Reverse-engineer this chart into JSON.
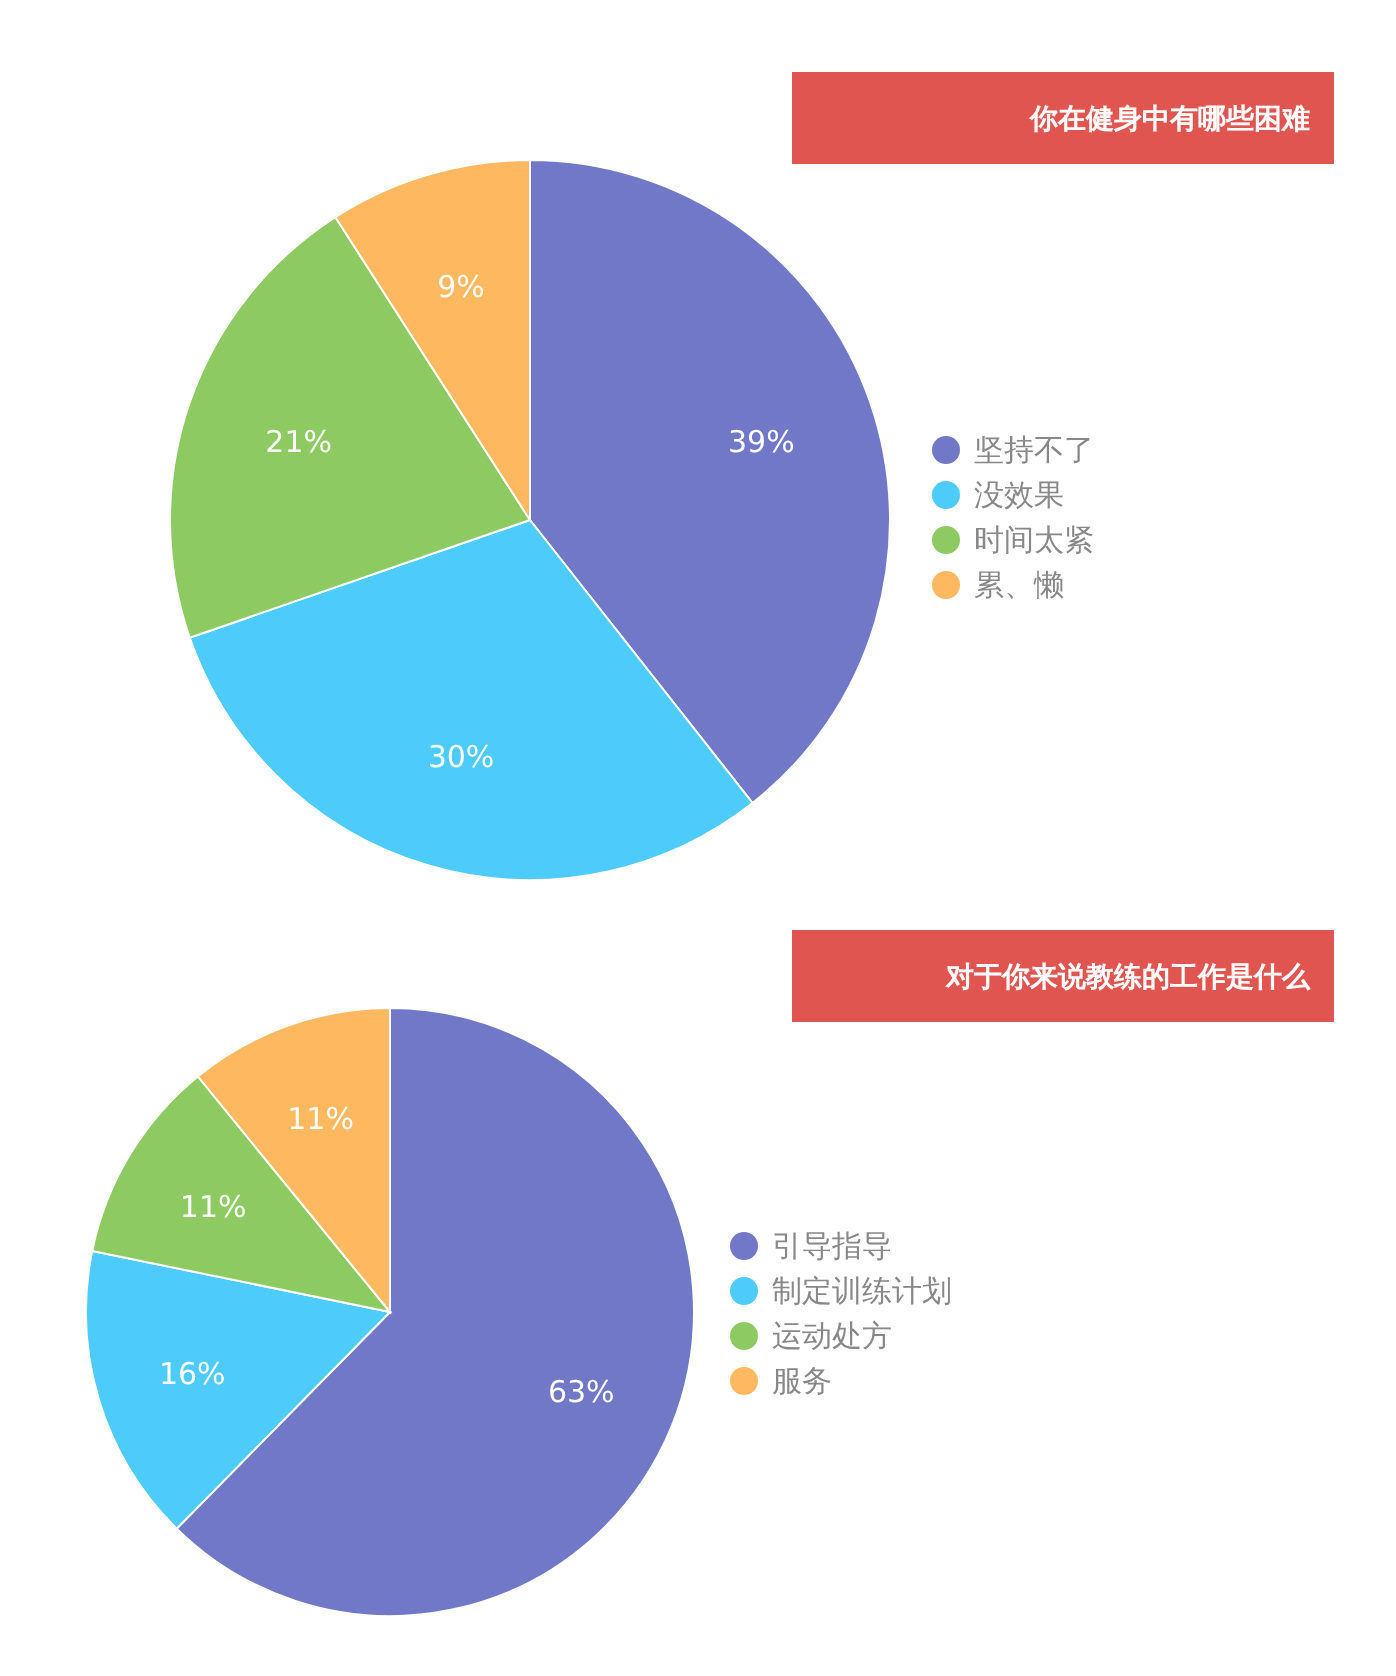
{
  "chart_data": [
    {
      "type": "pie",
      "title": "你在健身中有哪些困难",
      "categories": [
        "坚持不了",
        "没效果",
        "时间太紧",
        "累、懒"
      ],
      "values": [
        39,
        30,
        21,
        9
      ],
      "value_labels": [
        "39%",
        "30%",
        "21%",
        "9%"
      ],
      "colors": [
        "#7178c8",
        "#4dcbfb",
        "#8dcb62",
        "#fdb860"
      ],
      "legend": "right"
    },
    {
      "type": "pie",
      "title": "对于你来说教练的工作是什么",
      "categories": [
        "引导指导",
        "制定训练计划",
        "运动处方",
        "服务"
      ],
      "values": [
        63,
        16,
        11,
        11
      ],
      "value_labels": [
        "63%",
        "16%",
        "11%",
        "11%"
      ],
      "colors": [
        "#7178c8",
        "#4dcbfb",
        "#8dcb62",
        "#fdb860"
      ],
      "legend": "right"
    }
  ]
}
